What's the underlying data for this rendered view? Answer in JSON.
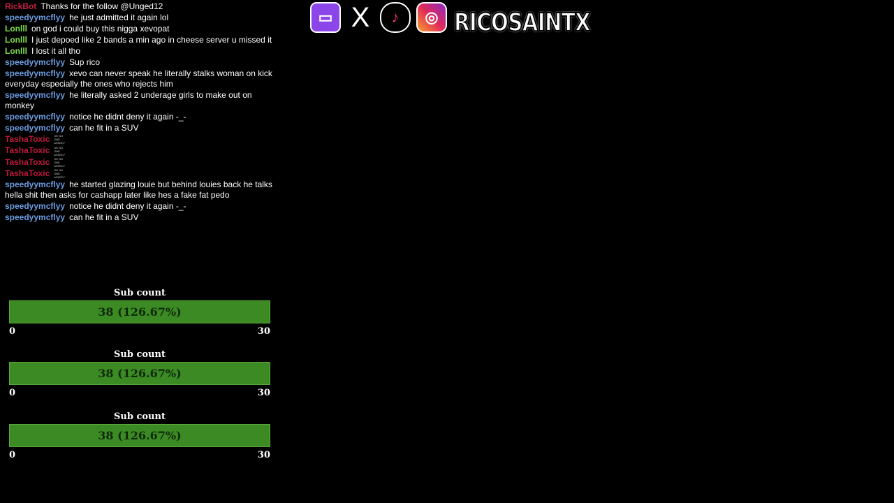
{
  "chat": [
    {
      "user": "RickBot",
      "cls": "rick",
      "text": "Thanks for the follow @Unged12",
      "top": 0
    },
    {
      "user": "speedyymcflyy",
      "cls": "speedy",
      "text": "he just admitted it again lol",
      "top": 13
    },
    {
      "user": "Lonlll",
      "cls": "lon",
      "text": "on god i could buy this nigga xevopat",
      "top": 21
    },
    {
      "user": "Lonlll",
      "cls": "lon",
      "text": "I just depoed like 2 bands a min ago in cheese server u missed it",
      "top": 41
    },
    {
      "user": "Lonlll",
      "cls": "lon",
      "text": "I lost it all tho",
      "top": 62
    },
    {
      "user": "speedyymcflyy",
      "cls": "speedy",
      "text": "Sup rico",
      "top": 83
    },
    {
      "user": "speedyymcflyy",
      "cls": "speedy",
      "text": "xevo can never speak he literally stalks woman on kick everyday especially the ones who rejects him",
      "top": 103
    },
    {
      "user": "speedyymcflyy",
      "cls": "speedy",
      "text": "he literally asked 2 underage girls to make out on monkey",
      "top": 138
    },
    {
      "user": "speedyymcflyy",
      "cls": "speedy",
      "text": "notice he didnt deny it again -_-",
      "top": 152
    },
    {
      "user": "speedyymcflyy",
      "cls": "speedy",
      "text": "can he fit in a SUV",
      "top": 173
    }
  ],
  "tasha": {
    "user": "TashaToxic",
    "badge": "OK NO ONE ASKED?",
    "tops": [
      235,
      255,
      276,
      296
    ]
  },
  "chat2": [
    {
      "user": "speedyymcflyy",
      "text": "he started glazing louie but behind louies back he talks hella shit then asks for cashapp later like hes a fake fat pedo",
      "top": 317
    },
    {
      "user": "speedyymcflyy",
      "text": "notice he didnt deny it again -_-",
      "top": 352
    },
    {
      "user": "speedyymcflyy",
      "text": "can he fit in a SUV",
      "top": 373
    }
  ],
  "subgoal": {
    "title": "Sub count",
    "value": "38 (126.67%)",
    "min": "0",
    "max": "30",
    "current": 38,
    "goal": 30,
    "percent": 126.67
  },
  "socials": [
    "twitch-icon",
    "x-icon",
    "tiktok-icon",
    "instagram-icon"
  ],
  "brand": "RICOSAINTX",
  "colors": {
    "bar": "#3c8a24",
    "speedy": "#6b9ce0",
    "lonlll": "#7ee04a",
    "tasha": "#c0183a"
  }
}
